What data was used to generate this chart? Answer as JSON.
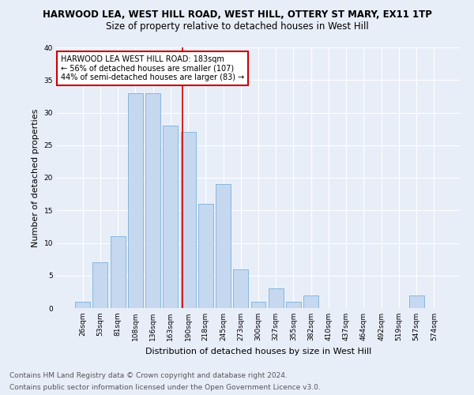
{
  "title": "HARWOOD LEA, WEST HILL ROAD, WEST HILL, OTTERY ST MARY, EX11 1TP",
  "subtitle": "Size of property relative to detached houses in West Hill",
  "xlabel": "Distribution of detached houses by size in West Hill",
  "ylabel": "Number of detached properties",
  "categories": [
    "26sqm",
    "53sqm",
    "81sqm",
    "108sqm",
    "136sqm",
    "163sqm",
    "190sqm",
    "218sqm",
    "245sqm",
    "273sqm",
    "300sqm",
    "327sqm",
    "355sqm",
    "382sqm",
    "410sqm",
    "437sqm",
    "464sqm",
    "492sqm",
    "519sqm",
    "547sqm",
    "574sqm"
  ],
  "values": [
    1,
    7,
    11,
    33,
    33,
    28,
    27,
    16,
    19,
    6,
    1,
    3,
    1,
    2,
    0,
    0,
    0,
    0,
    0,
    2,
    0
  ],
  "bar_color": "#c5d8f0",
  "bar_edge_color": "#7ab0d8",
  "vline_x": 5.67,
  "vline_color": "#cc0000",
  "annotation_text": "HARWOOD LEA WEST HILL ROAD: 183sqm\n← 56% of detached houses are smaller (107)\n44% of semi-detached houses are larger (83) →",
  "annotation_box_color": "#ffffff",
  "annotation_box_edge_color": "#cc0000",
  "ylim": [
    0,
    40
  ],
  "yticks": [
    0,
    5,
    10,
    15,
    20,
    25,
    30,
    35,
    40
  ],
  "footer_line1": "Contains HM Land Registry data © Crown copyright and database right 2024.",
  "footer_line2": "Contains public sector information licensed under the Open Government Licence v3.0.",
  "bg_color": "#e8eef8",
  "plot_bg_color": "#e8eef8",
  "grid_color": "#ffffff",
  "title_fontsize": 8.5,
  "subtitle_fontsize": 8.5,
  "tick_fontsize": 6.5,
  "label_fontsize": 8,
  "footer_fontsize": 6.5,
  "ann_fontsize": 7
}
